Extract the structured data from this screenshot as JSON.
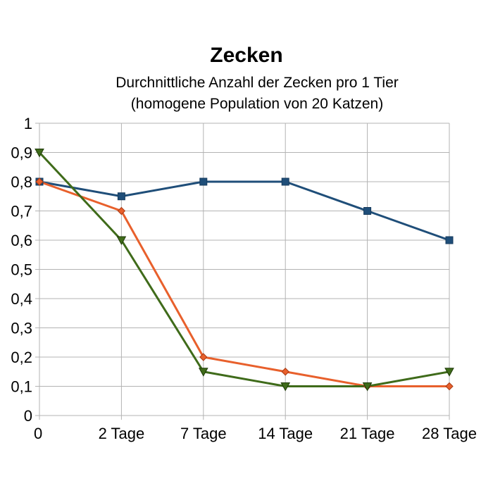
{
  "chart_data": {
    "type": "line",
    "title": "Zecken",
    "subtitle_lines": [
      "Durchnittliche Anzahl der Zecken pro 1 Tier",
      "(homogene Population von 20 Katzen)"
    ],
    "categories": [
      "0",
      "2 Tage",
      "7 Tage",
      "14 Tage",
      "21 Tage",
      "28 Tage"
    ],
    "y_ticks": [
      "0",
      "0,1",
      "0,2",
      "0,3",
      "0,4",
      "0,5",
      "0,6",
      "0,7",
      "0,8",
      "0,9",
      "1"
    ],
    "ylim": [
      0,
      1
    ],
    "grid": true,
    "legend": "none",
    "series": [
      {
        "values": [
          0.8,
          0.75,
          0.8,
          0.8,
          0.7,
          0.6
        ],
        "color": "#1f4e79",
        "marker": "square"
      },
      {
        "values": [
          0.8,
          0.7,
          0.2,
          0.15,
          0.1,
          0.1
        ],
        "color": "#e8602c",
        "marker": "diamond"
      },
      {
        "values": [
          0.9,
          0.6,
          0.15,
          0.1,
          0.1,
          0.15
        ],
        "color": "#3f6b1a",
        "marker": "triangle-down"
      }
    ]
  }
}
